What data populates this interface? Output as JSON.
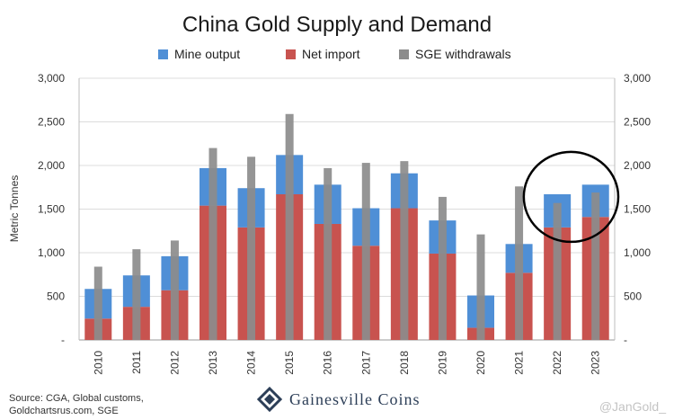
{
  "chart_data": {
    "type": "bar",
    "title": "China Gold Supply and Demand",
    "ylabel": "Metric Tonnes",
    "ylim": [
      0,
      3000
    ],
    "yticks": [
      0,
      500,
      1000,
      1500,
      2000,
      2500,
      3000
    ],
    "ytick_labels": [
      "-",
      "500",
      "1,000",
      "1,500",
      "2,000",
      "2,500",
      "3,000"
    ],
    "secondary_axis": true,
    "grid": true,
    "legend_position": "top",
    "categories": [
      "2010",
      "2011",
      "2012",
      "2013",
      "2014",
      "2015",
      "2016",
      "2017",
      "2018",
      "2019",
      "2020",
      "2021",
      "2022",
      "2023"
    ],
    "series": [
      {
        "name": "Mine output",
        "color": "#4f8fd6",
        "stacking": "stacked",
        "values": [
          340,
          360,
          390,
          430,
          450,
          450,
          450,
          430,
          400,
          380,
          370,
          330,
          380,
          370
        ]
      },
      {
        "name": "Net import",
        "color": "#c8534f",
        "stacking": "stacked-base",
        "values": [
          245,
          380,
          570,
          1540,
          1290,
          1670,
          1330,
          1080,
          1510,
          990,
          140,
          770,
          1290,
          1410
        ]
      },
      {
        "name": "SGE withdrawals",
        "color": "#8c8c8c",
        "stacking": "overlay-narrow",
        "values": [
          840,
          1040,
          1140,
          2200,
          2100,
          2590,
          1970,
          2030,
          2050,
          1640,
          1210,
          1760,
          1570,
          1690
        ]
      }
    ],
    "annotation": {
      "type": "ellipse",
      "highlight": [
        "2022",
        "2023"
      ]
    }
  },
  "source_text": [
    "Source: CGA, Global customs,",
    "Goldchartsrus.com, SGE"
  ],
  "brand": {
    "name": "Gainesville Coins",
    "color": "#2c3e57"
  },
  "handle": "@JanGold_"
}
